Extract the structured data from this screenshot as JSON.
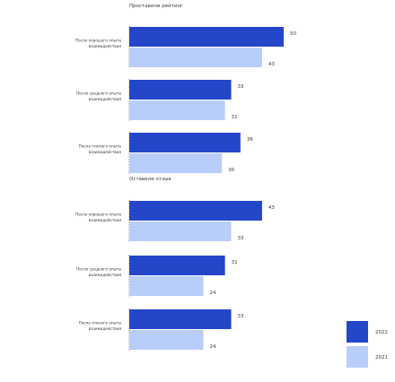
{
  "colors": {
    "series_2022": "#2446c9",
    "series_2021": "#b9cdfb",
    "axis": "#6e6e6e",
    "text": "#3a3a3a"
  },
  "chart_data": [
    {
      "type": "bar",
      "orientation": "horizontal",
      "title": "Проставили рейтинг",
      "categories": [
        "После хорошего опыта взаимодействия",
        "После среднего опыта взаимодействия",
        "После плохого опыта взаимодействия"
      ],
      "series": [
        {
          "name": "2022",
          "values": [
            50,
            33,
            36
          ]
        },
        {
          "name": "2021",
          "values": [
            43,
            31,
            30
          ]
        }
      ],
      "xlim": [
        0,
        55
      ],
      "grid": false
    },
    {
      "type": "bar",
      "orientation": "horizontal",
      "title": "Оставили отзыв",
      "categories": [
        "После хорошего опыта взаимодействия",
        "После среднего опыта взаимодействия",
        "После плохого опыта взаимодействия"
      ],
      "series": [
        {
          "name": "2022",
          "values": [
            43,
            31,
            33
          ]
        },
        {
          "name": "2021",
          "values": [
            33,
            24,
            24
          ]
        }
      ],
      "xlim": [
        0,
        55
      ],
      "grid": false
    }
  ],
  "legend": {
    "position": "bottom-right",
    "items": [
      "2022",
      "2021"
    ]
  }
}
